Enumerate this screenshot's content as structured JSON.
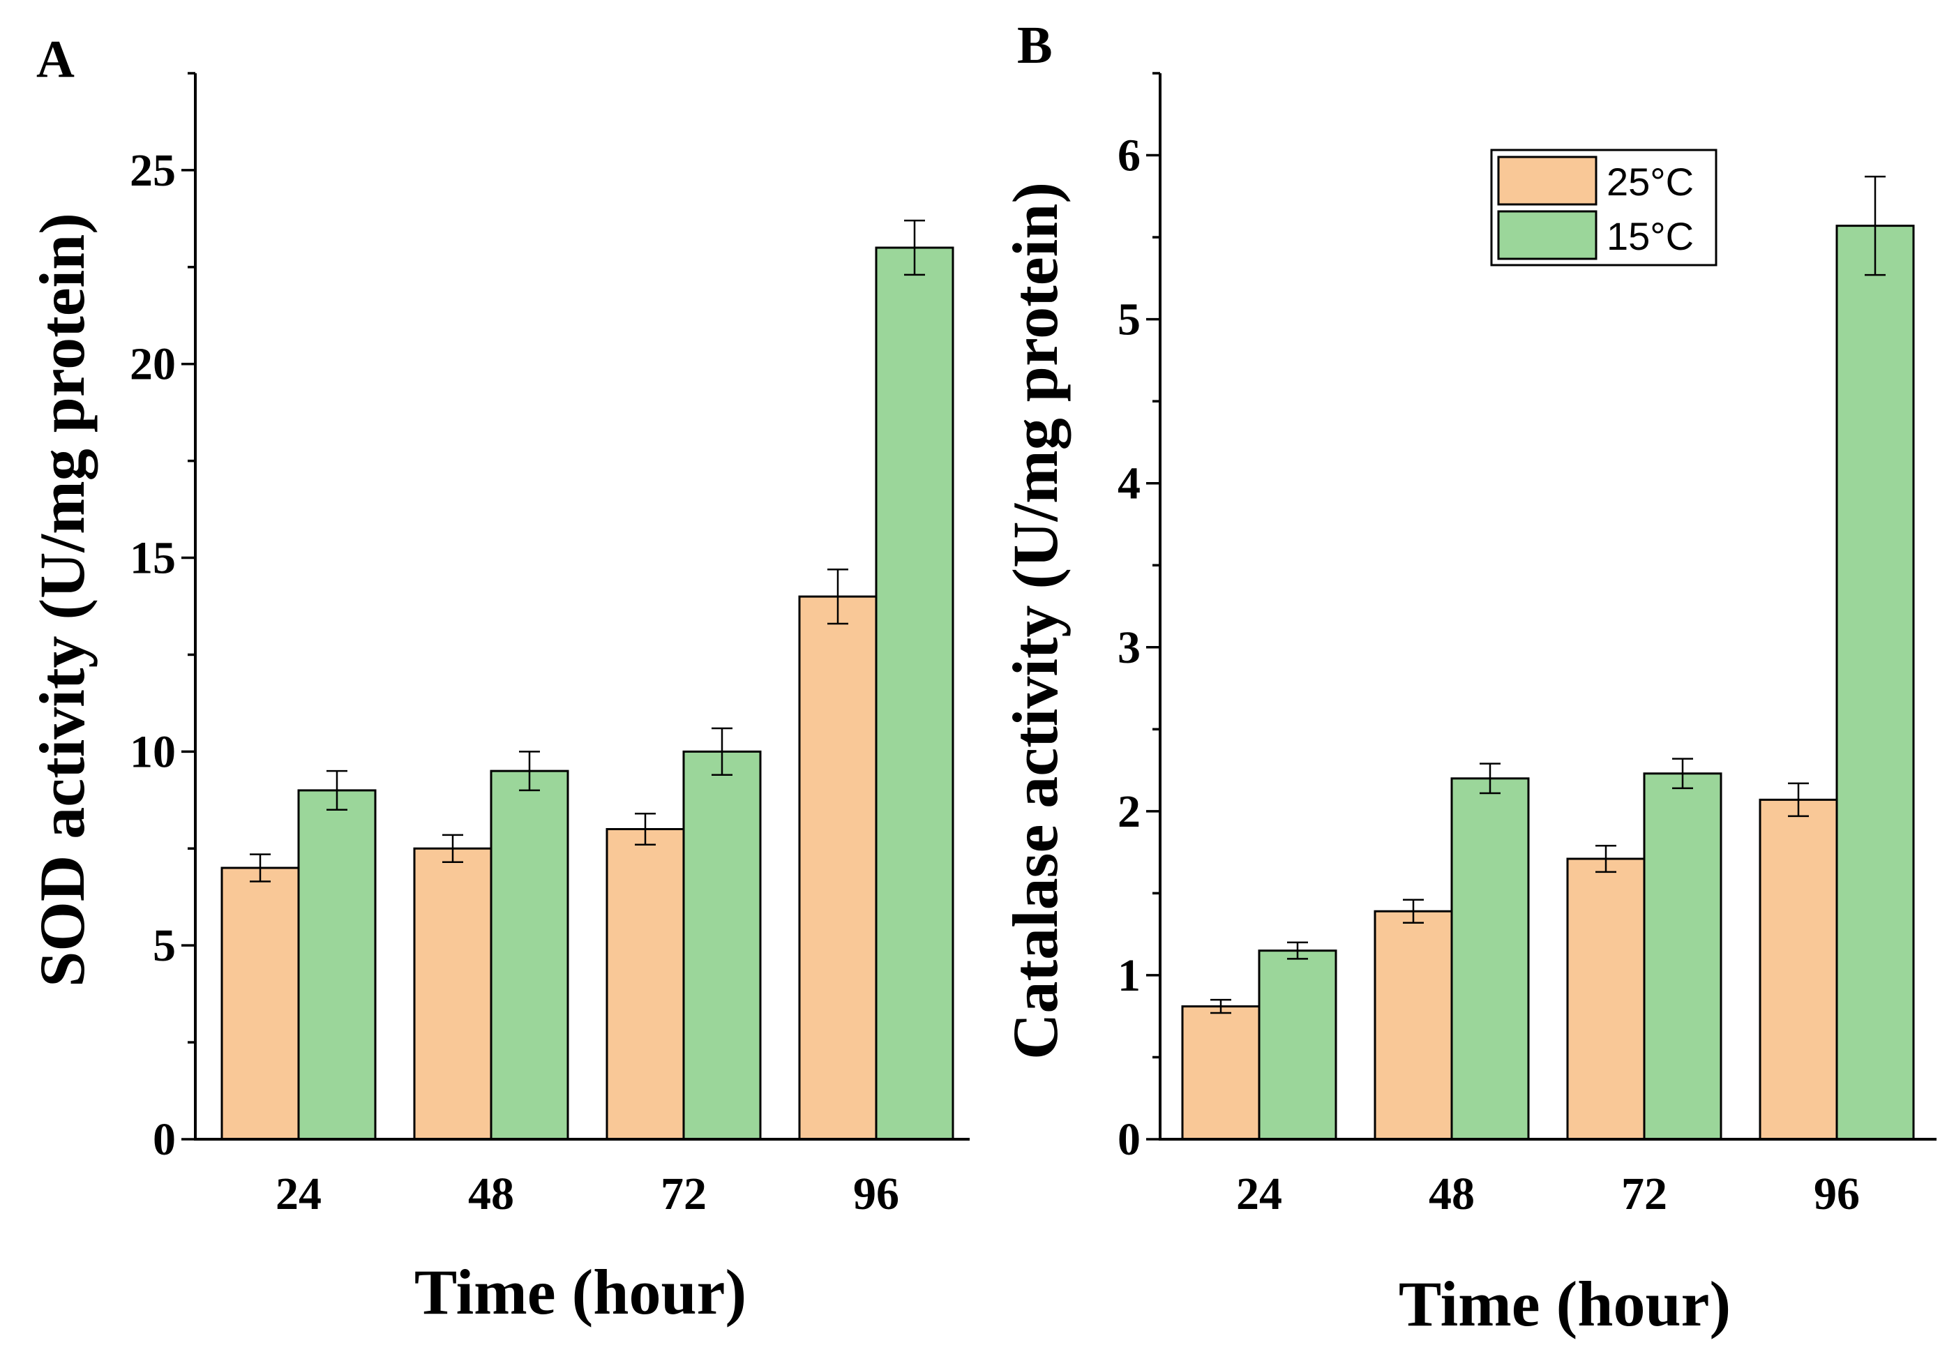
{
  "colors": {
    "series_25": "#F9C897",
    "series_15": "#9BD69A",
    "axis": "#000000"
  },
  "chart_data": [
    {
      "panel": "A",
      "type": "bar",
      "categories": [
        "24",
        "48",
        "72",
        "96"
      ],
      "xlabel": "Time (hour)",
      "ylabel": "SOD activity (U/mg protein)",
      "ylim": [
        0,
        27.5
      ],
      "yticks": [
        0,
        5,
        10,
        15,
        20,
        25
      ],
      "series": [
        {
          "name": "25°C",
          "values": [
            7.0,
            7.5,
            8.0,
            14.0
          ],
          "errors": [
            0.35,
            0.35,
            0.4,
            0.7
          ]
        },
        {
          "name": "15°C",
          "values": [
            9.0,
            9.5,
            10.0,
            23.0
          ],
          "errors": [
            0.5,
            0.5,
            0.6,
            0.7
          ]
        }
      ],
      "grid": false,
      "legend": "none"
    },
    {
      "panel": "B",
      "type": "bar",
      "categories": [
        "24",
        "48",
        "72",
        "96"
      ],
      "xlabel": "Time (hour)",
      "ylabel": "Catalase activity (U/mg protein)",
      "ylim": [
        0,
        6.5
      ],
      "yticks": [
        0,
        1,
        2,
        3,
        4,
        5,
        6
      ],
      "series": [
        {
          "name": "25°C",
          "values": [
            0.81,
            1.39,
            1.71,
            2.07
          ],
          "errors": [
            0.04,
            0.07,
            0.08,
            0.1
          ]
        },
        {
          "name": "15°C",
          "values": [
            1.15,
            2.2,
            2.23,
            5.57
          ],
          "errors": [
            0.05,
            0.09,
            0.09,
            0.3
          ]
        }
      ],
      "grid": false,
      "legend": "top-right"
    }
  ]
}
